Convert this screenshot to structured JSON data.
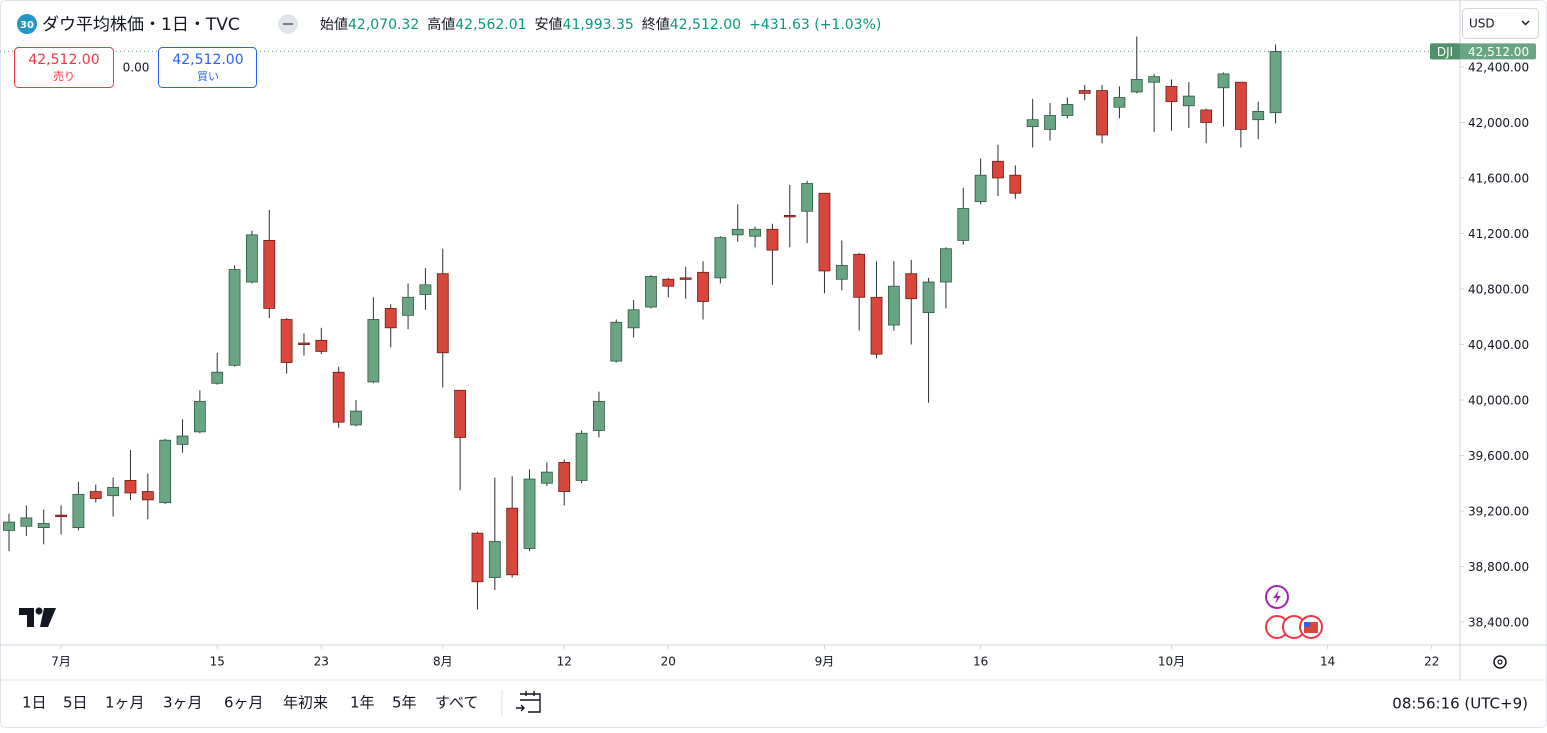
{
  "header": {
    "badge": "30",
    "title": "ダウ平均株価・1日・TVC",
    "ohlc": [
      {
        "label": "始値",
        "value": "42,070.32"
      },
      {
        "label": "高値",
        "value": "42,562.01"
      },
      {
        "label": "安値",
        "value": "41,993.35"
      },
      {
        "label": "終値",
        "value": "42,512.00"
      }
    ],
    "change": "+431.63 (+1.03%)"
  },
  "currency": "USD",
  "trade": {
    "sell_price": "42,512.00",
    "sell_label": "売り",
    "spread": "0.00",
    "buy_price": "42,512.00",
    "buy_label": "買い"
  },
  "chart_data": {
    "type": "candlestick",
    "up_color": "#6aa583",
    "down_color": "#d9463b",
    "open": [
      39060,
      39090,
      39080,
      39170,
      39080,
      39340,
      39310,
      39420,
      39340,
      39260,
      39680,
      39770,
      40120,
      40250,
      40850,
      41150,
      40580,
      40410,
      40430,
      40200,
      39820,
      40130,
      40660,
      40610,
      40760,
      40910,
      40070,
      39040,
      38720,
      39220,
      38930,
      39400,
      39550,
      39420,
      39780,
      40280,
      40520,
      40670,
      40870,
      40880,
      40920,
      40880,
      41190,
      41180,
      41230,
      41330,
      41360,
      41490,
      40870,
      41050,
      40740,
      40540,
      40910,
      40630,
      40850,
      41150,
      41430,
      41720,
      41620,
      41970,
      41950,
      42050,
      42230,
      42230,
      42110,
      42220,
      42290,
      42260,
      42120,
      42090,
      42250,
      42290,
      42020,
      42070.32
    ],
    "high": [
      39180,
      39240,
      39210,
      39240,
      39410,
      39390,
      39440,
      39640,
      39470,
      39720,
      39860,
      40070,
      40340,
      40970,
      41220,
      41370,
      40590,
      40480,
      40520,
      40240,
      40000,
      40740,
      40690,
      40840,
      40950,
      41090,
      40070,
      39050,
      39440,
      39450,
      39500,
      39550,
      39570,
      39780,
      40060,
      40580,
      40720,
      40900,
      40880,
      40960,
      41000,
      41180,
      41410,
      41250,
      41270,
      41550,
      41580,
      41490,
      41150,
      41060,
      41000,
      41000,
      41010,
      40880,
      41100,
      41530,
      41740,
      41840,
      41690,
      42170,
      42140,
      42180,
      42270,
      42270,
      42260,
      42620,
      42350,
      42310,
      42290,
      42100,
      42360,
      42290,
      42150,
      42562.01
    ],
    "low": [
      38910,
      39020,
      38960,
      39030,
      39060,
      39260,
      39160,
      39280,
      39140,
      39250,
      39620,
      39760,
      40110,
      40240,
      40840,
      40590,
      40190,
      40320,
      40330,
      39800,
      39810,
      40120,
      40380,
      40510,
      40650,
      40090,
      39350,
      38490,
      38630,
      38720,
      38910,
      39380,
      39240,
      39400,
      39730,
      40270,
      40450,
      40660,
      40740,
      40730,
      40580,
      40840,
      41140,
      41100,
      40830,
      41100,
      41130,
      40770,
      40790,
      40500,
      40300,
      40500,
      40400,
      39980,
      40660,
      41120,
      41410,
      41470,
      41450,
      41820,
      41870,
      42030,
      42160,
      41850,
      42030,
      42210,
      41930,
      41940,
      41960,
      41850,
      41970,
      41820,
      41880,
      41993.35
    ],
    "close": [
      39120,
      39150,
      39110,
      39160,
      39320,
      39290,
      39370,
      39330,
      39280,
      39710,
      39740,
      39990,
      40200,
      40940,
      41190,
      40660,
      40270,
      40400,
      40350,
      39840,
      39920,
      40580,
      40520,
      40740,
      40830,
      40340,
      39730,
      38690,
      38980,
      38740,
      39430,
      39480,
      39340,
      39760,
      39990,
      40560,
      40650,
      40890,
      40820,
      40870,
      40710,
      41170,
      41230,
      41230,
      41080,
      41320,
      41560,
      40930,
      40970,
      40740,
      40330,
      40820,
      40730,
      40850,
      41090,
      41380,
      41620,
      41600,
      41490,
      42020,
      42050,
      42130,
      42210,
      41910,
      42180,
      42310,
      42330,
      42150,
      42190,
      42000,
      42350,
      41950,
      42080,
      42512
    ],
    "xlim": [
      -0.52,
      83.63
    ],
    "xticks": [
      {
        "value": 3,
        "label": "7月"
      },
      {
        "value": 12,
        "label": "15"
      },
      {
        "value": 18,
        "label": "23"
      },
      {
        "value": 25,
        "label": "8月"
      },
      {
        "value": 32,
        "label": "12"
      },
      {
        "value": 38,
        "label": "20"
      },
      {
        "value": 47,
        "label": "9月"
      },
      {
        "value": 56,
        "label": "16"
      },
      {
        "value": 67,
        "label": "10月"
      },
      {
        "value": 76,
        "label": "14"
      },
      {
        "value": 82,
        "label": "22"
      }
    ],
    "ylim": [
      38234,
      42825
    ],
    "yticks": [
      {
        "value": 38400,
        "label": "38,400.00"
      },
      {
        "value": 38800,
        "label": "38,800.00"
      },
      {
        "value": 39200,
        "label": "39,200.00"
      },
      {
        "value": 39600,
        "label": "39,600.00"
      },
      {
        "value": 40000,
        "label": "40,000.00"
      },
      {
        "value": 40400,
        "label": "40,400.00"
      },
      {
        "value": 40800,
        "label": "40,800.00"
      },
      {
        "value": 41200,
        "label": "41,200.00"
      },
      {
        "value": 41600,
        "label": "41,600.00"
      },
      {
        "value": 42000,
        "label": "42,000.00"
      },
      {
        "value": 42400,
        "label": "42,400.00"
      }
    ],
    "last_price": {
      "symbol": "DJI",
      "value": 42512,
      "label": "42,512.00"
    }
  },
  "toolbar": {
    "ranges": [
      "1日",
      "5日",
      "1ヶ月",
      "3ヶ月",
      "6ヶ月",
      "年初来",
      "1年",
      "5年",
      "すべて"
    ],
    "time": "08:56:16 (UTC+9)"
  }
}
